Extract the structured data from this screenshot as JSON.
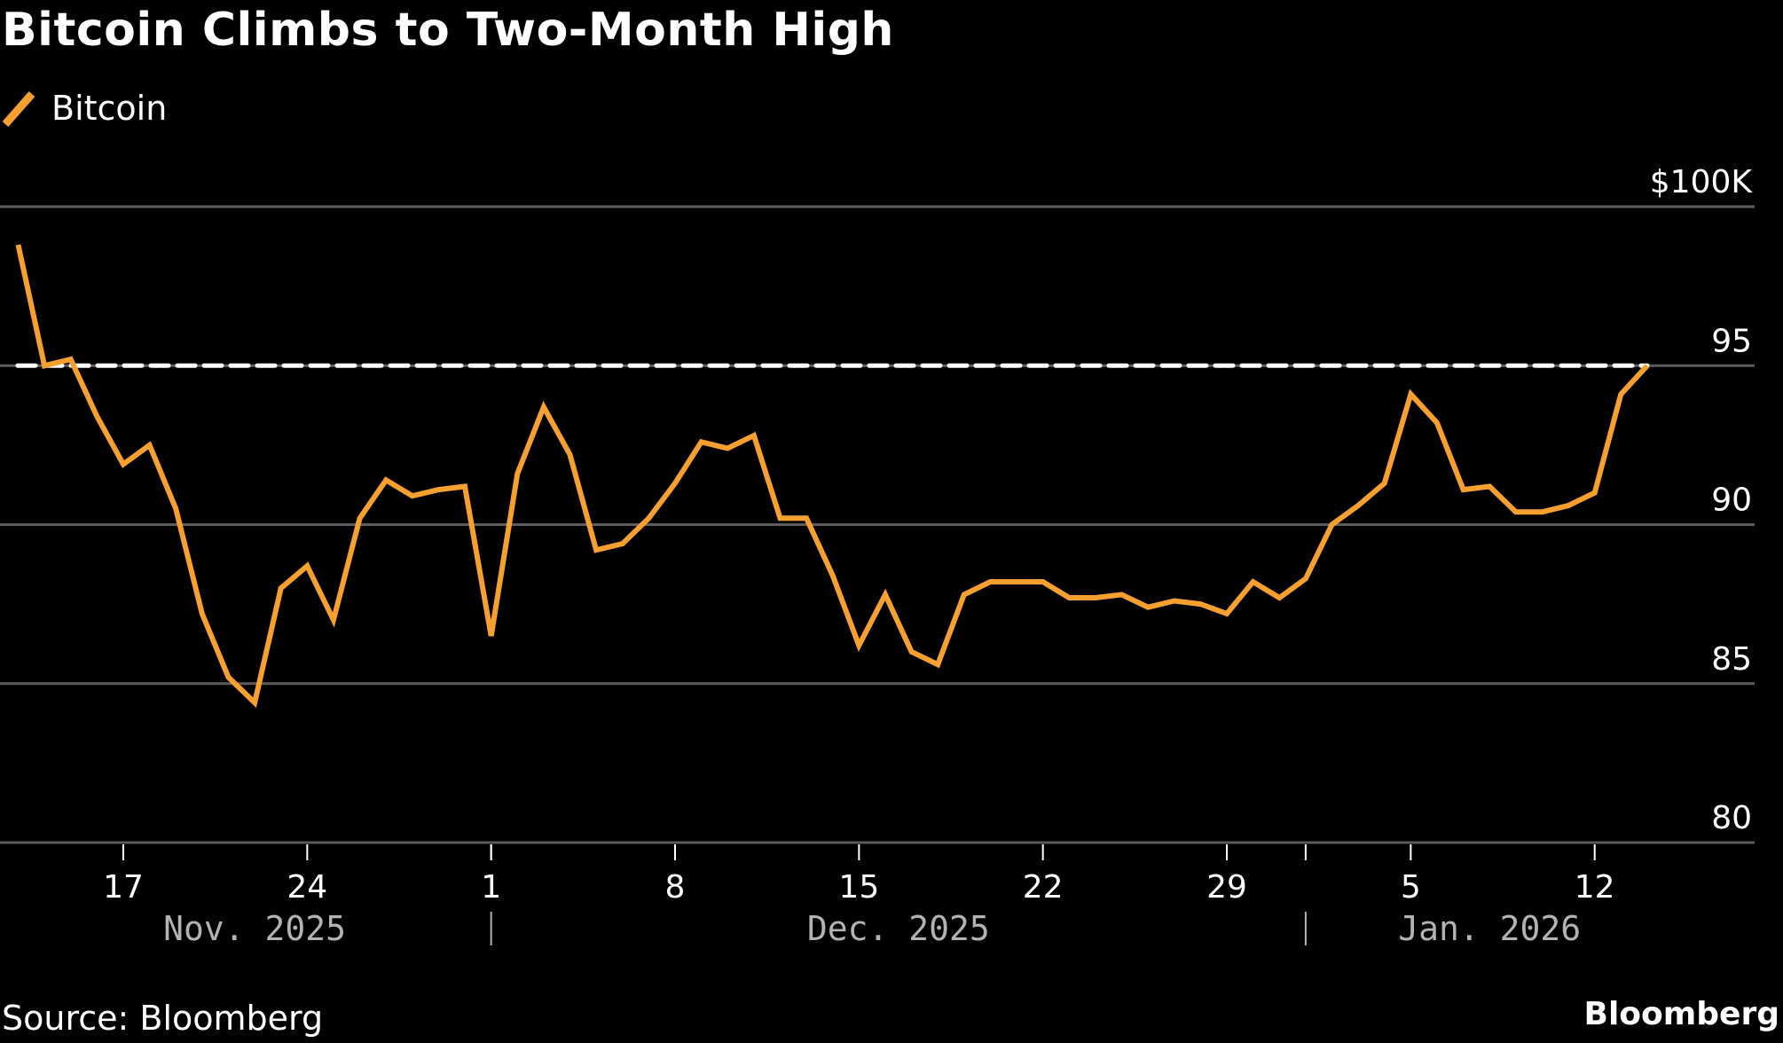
{
  "header": {
    "title": "Bitcoin Climbs to Two-Month High",
    "legend": [
      {
        "label": "Bitcoin",
        "color": "#f7a030"
      }
    ]
  },
  "footer": {
    "source": "Source: Bloomberg",
    "brand": "Bloomberg"
  },
  "colors": {
    "background": "#000000",
    "series": "#f7a030",
    "grid": "#5c5c5c",
    "reference_line": "#ffffff",
    "month_label": "#b3b3b3"
  },
  "chart_data": {
    "type": "line",
    "title": "Bitcoin Climbs to Two-Month High",
    "xlabel": "",
    "ylabel": "",
    "y_unit": "$K",
    "ylim": [
      80,
      100
    ],
    "y_ticks": [
      {
        "value": 100,
        "label": "$100K"
      },
      {
        "value": 95,
        "label": "95"
      },
      {
        "value": 90,
        "label": "90"
      },
      {
        "value": 85,
        "label": "85"
      },
      {
        "value": 80,
        "label": "80"
      }
    ],
    "x_ticks": [
      {
        "day": 4,
        "label": "17"
      },
      {
        "day": 11,
        "label": "24"
      },
      {
        "day": 18,
        "label": "1"
      },
      {
        "day": 25,
        "label": "8"
      },
      {
        "day": 32,
        "label": "15"
      },
      {
        "day": 39,
        "label": "22"
      },
      {
        "day": 46,
        "label": "29"
      },
      {
        "day": 53,
        "label": "5"
      },
      {
        "day": 60,
        "label": "12"
      }
    ],
    "month_labels": [
      {
        "label": "Nov. 2025",
        "center_day": 9
      },
      {
        "label": "Dec. 2025",
        "center_day": 33.5
      },
      {
        "label": "Jan. 2026",
        "center_day": 56
      }
    ],
    "month_separators_day": [
      18,
      49
    ],
    "grid": true,
    "legend_position": "top-left",
    "reference_line": {
      "value": 95.0,
      "style": "dashed",
      "color": "#ffffff"
    },
    "series": [
      {
        "name": "Bitcoin",
        "color": "#f7a030",
        "x": [
          "Nov 13",
          "Nov 14",
          "Nov 15",
          "Nov 16",
          "Nov 17",
          "Nov 18",
          "Nov 19",
          "Nov 20",
          "Nov 21",
          "Nov 22",
          "Nov 23",
          "Nov 24",
          "Nov 25",
          "Nov 26",
          "Nov 27",
          "Nov 28",
          "Nov 29",
          "Nov 30",
          "Dec 1",
          "Dec 2",
          "Dec 3",
          "Dec 4",
          "Dec 5",
          "Dec 6",
          "Dec 7",
          "Dec 8",
          "Dec 9",
          "Dec 10",
          "Dec 11",
          "Dec 12",
          "Dec 13",
          "Dec 14",
          "Dec 15",
          "Dec 16",
          "Dec 17",
          "Dec 18",
          "Dec 19",
          "Dec 20",
          "Dec 21",
          "Dec 22",
          "Dec 23",
          "Dec 24",
          "Dec 25",
          "Dec 26",
          "Dec 27",
          "Dec 28",
          "Dec 29",
          "Dec 30",
          "Dec 31",
          "Jan 1",
          "Jan 2",
          "Jan 3",
          "Jan 4",
          "Jan 5",
          "Jan 6",
          "Jan 7",
          "Jan 8",
          "Jan 9",
          "Jan 10",
          "Jan 11",
          "Jan 12",
          "Jan 13",
          "Jan 14"
        ],
        "values": [
          98.8,
          95.0,
          95.2,
          93.4,
          91.9,
          92.5,
          90.5,
          87.2,
          85.2,
          84.4,
          88.0,
          88.7,
          87.0,
          90.2,
          91.4,
          90.9,
          91.1,
          91.2,
          86.5,
          91.6,
          93.7,
          92.2,
          89.2,
          89.4,
          90.2,
          91.3,
          92.6,
          92.4,
          92.8,
          90.2,
          90.2,
          88.4,
          86.2,
          87.8,
          86.0,
          85.6,
          87.8,
          88.2,
          88.2,
          88.2,
          87.7,
          87.7,
          87.8,
          87.4,
          87.6,
          87.5,
          87.2,
          88.2,
          87.7,
          88.3,
          90.0,
          90.6,
          91.3,
          94.1,
          93.2,
          91.1,
          91.2,
          90.4,
          90.4,
          90.6,
          91.0,
          94.1,
          95.0
        ]
      }
    ]
  }
}
